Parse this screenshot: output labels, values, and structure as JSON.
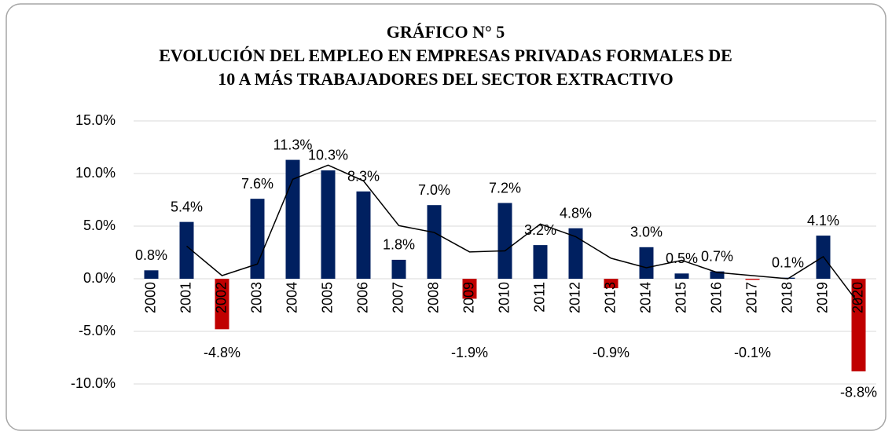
{
  "chart_data": {
    "type": "bar",
    "title": [
      "GRÁFICO N° 5",
      "EVOLUCIÓN DEL EMPLEO EN EMPRESAS PRIVADAS FORMALES DE",
      "10 A MÁS TRABAJADORES DEL SECTOR EXTRACTIVO"
    ],
    "categories": [
      "2000",
      "2001",
      "2002",
      "2003",
      "2004",
      "2005",
      "2006",
      "2007",
      "2008",
      "2009",
      "2010",
      "2011",
      "2012",
      "2013",
      "2014",
      "2015",
      "2016",
      "2017",
      "2018",
      "2019",
      "2020"
    ],
    "values": [
      0.8,
      5.4,
      -4.8,
      7.6,
      11.3,
      10.3,
      8.3,
      1.8,
      7.0,
      -1.9,
      7.2,
      3.2,
      4.8,
      -0.9,
      3.0,
      0.5,
      0.7,
      -0.1,
      0.1,
      4.1,
      -8.8
    ],
    "value_labels": [
      "0.8%",
      "5.4%",
      "-4.8%",
      "7.6%",
      "11.3%",
      "10.3%",
      "8.3%",
      "1.8%",
      "7.0%",
      "-1.9%",
      "7.2%",
      "3.2%",
      "4.8%",
      "-0.9%",
      "3.0%",
      "0.5%",
      "0.7%",
      "-0.1%",
      "0.1%",
      "4.1%",
      "-8.8%"
    ],
    "color": "#002060",
    "negative_color": "#c00000",
    "line": {
      "color": "#000000",
      "values": [
        null,
        3.1,
        0.3,
        1.4,
        9.45,
        10.8,
        9.3,
        5.05,
        4.4,
        2.55,
        2.65,
        5.2,
        4.0,
        1.95,
        1.05,
        1.75,
        0.6,
        0.3,
        0.0,
        2.1,
        -2.35
      ]
    },
    "ylim": [
      -10,
      15
    ],
    "yticks": [
      {
        "value": -10,
        "label": "-10.0%"
      },
      {
        "value": -5,
        "label": "-5.0%"
      },
      {
        "value": 0,
        "label": "0.0%"
      },
      {
        "value": 5,
        "label": "5.0%"
      },
      {
        "value": 10,
        "label": "10.0%"
      },
      {
        "value": 15,
        "label": "15.0%"
      }
    ],
    "grid": true
  }
}
